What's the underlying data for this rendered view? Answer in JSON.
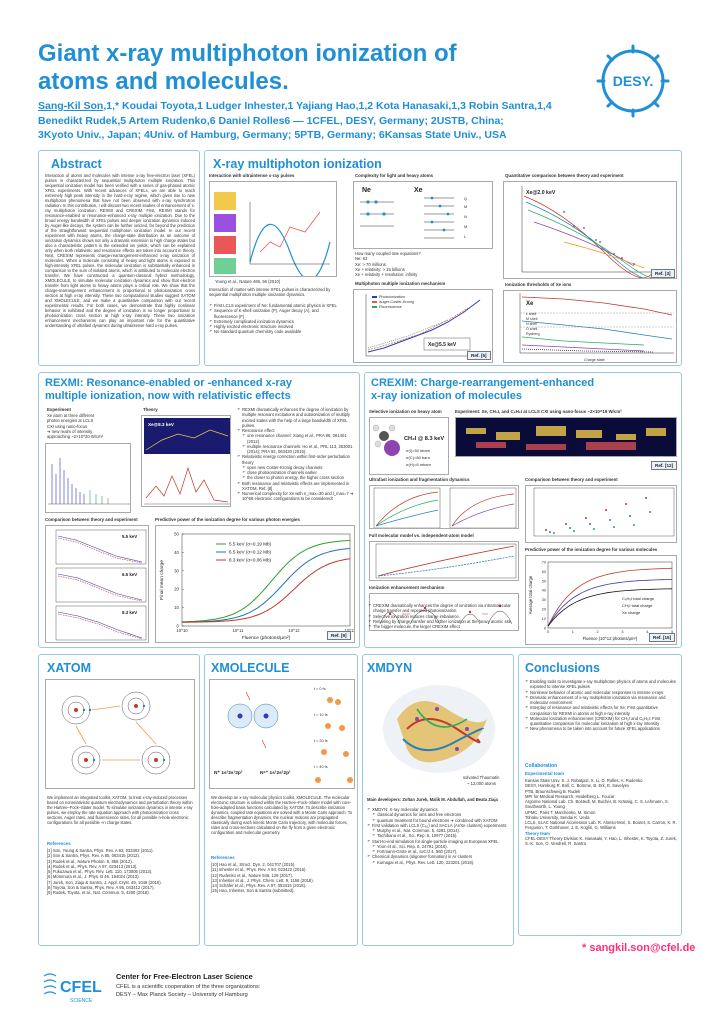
{
  "header": {
    "title_line1": "Giant x-ray multiphoton ionization of",
    "title_line2": "atoms and molecules.",
    "authors_line1_name": "Sang-Kil Son",
    "authors_line1_rest": ",1,* Koudai Toyota,1 Ludger Inhester,1 Yajiang Hao,1,2 Kota Hanasaki,1,3 Robin Santra,1,4",
    "authors_line2": "Benedikt Rudek,5 Artem Rudenko,6 Daniel Rolles6 — 1CFEL, DESY, Germany; 2USTB, China;",
    "authors_line3": "3Kyoto Univ., Japan; 4Univ. of Hamburg, Germany; 5PTB, Germany; 6Kansas State Univ., USA",
    "logo_text": "DESY."
  },
  "abstract": {
    "heading": "Abstract",
    "text": "Interaction of atoms and molecules with intense x-ray free-electron laser (XFEL) pulses is characterized by sequential multiphoton multiple ionization. This sequential ionization model has been verified with a series of gas-phased atomic XFEL experiments. With recent advances of XFELs, we are able to reach extremely high peak intensity in the hard-x-ray regime, which gives rise to new multiphoton phenomena that have not been observed with x-ray synchrotron radiation. In this contribution, I will discuss two recent studies of enhancement of x-ray multiphoton ionization: REXMI and CREXIM. First, REXMI stands for resonance-enabled or resonance-enhanced x-ray multiple ionization. Due to the broad energy bandwidth of XFEL pulses and deeper ionization dynamics induced by Auger-like decays, the system can be further ionized, far beyond the prediction of the straightforward sequential multiphoton ionization model. In our recent experiment with heavy atoms, the charge-state distribution as an outcome of ionization dynamics shows not only a dramatic extension to high charge states but also a characteristic pattern in the extended ion yields, which can be explained only when both relativistic and resonance effects are taken into account in theory. Next, CREXIM represents charge-rearrangement-enhanced x-ray ionization of molecules. When a molecule consisting of heavy and light atoms is exposed to high-intensity XFEL pulses, the molecular ionization is substantially enhanced in comparison to the sum of isolated atoms, which is attributed to molecular electron transfer. We have constructed a quantum-classical hybrid methodology, XMOLECULE, to simulate molecular ionization dynamics and show that electron transfer from light atoms to heavy atoms plays a critical role. We show that the charge-rearrangement enhancement is proportional to photoionization cross section at high x-ray intensity. These two computational studies suggest XATOM and XMOLECULE, and we make a quantitative comparison with our recent experimental results. For both cases, we demonstrate that highly nonlinear behavior is exhibited and the degree of ionization is no longer proportional to photoionization cross section at high x-ray intensity. These two ionization enhancement mechanisms can play an important role for the quantitative understanding of ultrafast dynamics during ultraintense hard x-ray pulses."
  },
  "xmi": {
    "heading": "X-ray multiphoton ionization",
    "fig1_title": "Interaction with ultraintense x-ray pulses",
    "fig1_ref": "Young et al., Nature 466, 56 (2010)",
    "bullets_intro": "Interaction of matter with intense XFEL pulses is characterized by sequential multiphoton multiple ionization dynamics.",
    "bullets": [
      "First LCLS experiment of Ne: fundamental atomic physics in XFEL",
      "Sequence of K-shell ionization (P), Auger decay (A), and fluorescence (F)",
      "Extremely complicated ionization dynamics",
      "Highly excited electronic structure involved",
      "No standard quantum chemistry code available"
    ],
    "fig2_title": "Complexity for light and heavy atoms",
    "ne_label": "Ne",
    "xe_label": "Xe",
    "ne_lines": [
      "How many coupled rate equations?",
      "Ne: 63",
      "Xe: > 70 millions",
      "Xe + relativity: > 15 billions",
      "Xe + relativity + resolution: infinity"
    ],
    "fig3_title": "Quantitative comparison between theory and experiment",
    "fig3_label": "Xe@2.0 keV",
    "fig3_ref": "Ref. [3]",
    "fig4_title": "Multiphoton multiple ionization mechanism",
    "fig4_label": "Xe@5.5 keV",
    "fig4_legend": [
      "Photoionization",
      "Auger-Coster-Kronig",
      "Fluorescence"
    ],
    "fig4_ref": "Ref. [5]",
    "fig5_title": "Ionization thresholds of Xe ions",
    "fig5_label": "Xe",
    "fig5_legend": [
      "L shell",
      "M shell",
      "N shell",
      "O shell",
      "Rydberg"
    ],
    "fig5_x": "Charge state",
    "fig5_y": "Orbital binding energy (keV)"
  },
  "rexmi": {
    "heading_line1": "REXMI: Resonance-enabled or -enhanced x-ray",
    "heading_line2": "multiple ionization, now with relativistic effects",
    "exp_title": "Experiment",
    "exp_lines": [
      "Xe atom at three different",
      "photon energies at LCLS",
      "CXI using nano-focus",
      "➔ new realm of intensity",
      "approaching ~2×10^20 W/cm²"
    ],
    "theory_title": "Theory",
    "theory_label": "Xe@8.3 keV",
    "bullets": [
      "REXMI dramatically enhances the degree of ionization by multiple resonant excitations and autoionization of multiply excited states with the help of a large bandwidth of XFEL pulses.",
      "Resonance effect",
      "one resonance channel: Xiang et al., PRA 86, 061401 (2012).",
      "multiple resonance channels: Ho et al., PRL 113, 253001 (2014); PRA 92, 063430 (2015).",
      "Relativistic energy correction within first-order perturbation theory",
      "open new Coster-Kronig decay channels",
      "close photoionization channels earlier",
      "the closer to photon energy, the higher cross section",
      "Both resonance and relativistic effects are implemented in XATOM. Ref. [8]",
      "Numerical complexity for Xe with n_max=30 and l_max=7 ➔ 10^68 electronic configurations to be considered!"
    ],
    "cmp_title": "Comparison between theory and experiment",
    "cmp_labels": [
      "5.5 keV",
      "6.5 keV",
      "8.3 keV"
    ],
    "pred_title": "Predictive power of the ionization degree for various photon energies",
    "pred_series": [
      "5.5 keV (σ=0.19 Mb)",
      "6.5 keV (σ=0.12 Mb)",
      "8.3 keV (σ=0.06 Mb)"
    ],
    "pred_xlabel": "Fluence (photons/μm²)",
    "pred_ylabel": "Final mean charge",
    "pred_ref": "Ref. [9]"
  },
  "crexim": {
    "heading_line1": "CREXIM: Charge-rearrangement-enhanced",
    "heading_line2": "x-ray ionization of molecules",
    "sel_title": "Selective ionization on heavy atom",
    "sel_label": "CH₃I @ 8.3 keV",
    "sel_cs": [
      "σ(I)=50 kbarn",
      "σ(C)=80 barn",
      "σ(H)=8 mbarn"
    ],
    "exp_title": "Experiment: Xe, CH₃I, and C₆H₅I at LCLS CXI using nano-focus ~2×10^19 W/cm²",
    "exp_ref": "Ref. [12]",
    "ultra_title": "Ultrafast ionization and fragmentation dynamics",
    "cmp_title": "Comparison between theory and experiment",
    "full_title": "Full molecular model vs. independent-atom model",
    "mech_title": "Ionization enhancement mechanism",
    "pred_title": "Predictive power of the ionization degree for various molecules",
    "pred_series": [
      "C₆H₅I total charge",
      "CH₃I total charge",
      "Xe charge"
    ],
    "pred_xlabel": "Fluence (10^12 photons/μm²)",
    "pred_ylabel": "Average total charge",
    "pred_ref": "Ref. [15]",
    "bullets": [
      "CREXIM dramatically enhances the degree of ionization via intramolecular charge transfer and repeated photoionization.",
      "Selective ionization induces charge imbalance.",
      "Refueling by charge transfer and further ionization at the heavy atomic site",
      "The bigger molecule, the larger CREXIM effect"
    ]
  },
  "xatom": {
    "heading": "XATOM",
    "text": "We implement an integrated toolkit, XATOM, to treat x-ray-induced processes based on nonrelativistic quantum electrodynamics and perturbation theory within the Hartree–Fock–Slater model. To simulate ionization dynamics in intense x-ray pulses, we employ the rate equation approach with photoionization cross sections, Auger rates, and fluorescence rates, for all possible n-hole electronic configurations for all possible +n charge states.",
    "refs_title": "References",
    "refs": [
      "[1] Son, Young & Santra, Phys. Rev. A 83, 033402 (2011).",
      "[2] Son & Santra, Phys. Rev. A 85, 063415 (2012).",
      "[3] Rudek et al., Nature Photon. 6, 858 (2012).",
      "[4] Rudek et al., Phys. Rev. A 87, 023413 (2013).",
      "[5] Fukuzawa et al., Phys. Rev. Lett. 110, 173005 (2013).",
      "[6] Motomura et al., J. Phys. B 46, 164024 (2013).",
      "[7] Jurek, Son, Ziaja & Santra, J. Appl. Cryst. 49, 1048 (2016).",
      "[8] Toyota, Son & Santra, Phys. Rev. A 95, 043412 (2017).",
      "[9] Rudek, Toyota, et al., Nat. Commun. 9, 4200 (2018)."
    ]
  },
  "xmolecule": {
    "heading": "XMOLECULE",
    "config1": "N⁺ 1s²2s¹2p³",
    "config2": "N⁶⁺ 1s¹2s¹2p¹",
    "times": [
      "t = 0 fs",
      "t = 10 fs",
      "t = 20 fs",
      "t = 40 fs"
    ],
    "text": "We develop an x-ray molecular physics toolkit, XMOLECULE. The molecular electronic structure is solved within the Hartree–Fock–Slater model with core-hole-adapted basis functions calculated by XATOM. To describe ionization dynamics, coupled rate equations are solved with a Monte Carlo approach. To describe fragmentation dynamics, the nuclear motions are propagated classically during each kinetic Monte Carlo trajectory, with molecular forces, rates and cross-sections calculated on the fly from a given electronic configuration and molecular geometry.",
    "refs_title": "References",
    "refs": [
      "[10] Hao et al., Struct. Dyn. 2, 041707 (2015).",
      "[11] Inhester et al., Phys. Rev. A 94, 023422 (2016).",
      "[12] Rudenko et al., Nature 546, 129 (2017).",
      "[13] Inhester et al., J. Phys. Chem. Lett. 9, 1156 (2018).",
      "[14] Schäfer et al., Phys. Rev. A 97, 053415 (2018).",
      "[15] Hao, Inhester, Son & Santra (submitted)."
    ]
  },
  "xmdyn": {
    "heading": "XMDYN",
    "caption_line1": "solvated Thaumatin",
    "caption_line2": "~ 12,000 atoms",
    "developers": "Main developers: Zoltan Jurek, Malik M. Abdullah, and Beata Ziaja",
    "bullets": [
      "XMDYN: X-ray molecular dynamics",
      "classical dynamics for ions and free electrons",
      "quantum treatment for bound electrons ➔ combined with XATOM",
      "First validation with LCLS (C₆₀) and SACLA (Ar/Xe clusters) experiments",
      "Murphy et al., Nat. Commun. 5, 4281 (2014).",
      "Tachibana et al., Sci. Rep. 5, 10977 (2015).",
      "Start-to-end simulation for single-particle imaging at European XFEL",
      "Yoon et al., Sci. Rep. 6, 24791 (2016).",
      "Fortmann-Grote et al., IUCrJ 4, 560 (2017).",
      "Chemical dynamics (oligomer formation) in Ar clusters",
      "Kumagai et al., Phys. Rev. Lett. 120, 223201 (2018)."
    ]
  },
  "conclusions": {
    "heading": "Conclusions",
    "bullets": [
      "Enabling tools to investigate x-ray multiphoton physics of atoms and molecules exposed to intense XFEL pulses",
      "Nonlinear behavior of atomic and molecular responses to intense x-rays",
      "Dramatic enhancement of x-ray multiphoton ionization via resonance and molecular environment",
      "Interplay of resonance and relativistic effects for Xe: First quantitative comparison for REXMI in atoms at high x-ray intensity",
      "Molecular ionization enhancement (CREXIM) for CH₃I and C₆H₅I: First quantitative comparison for molecular ionization at high x-ray intensity",
      "New phenomena to be taken into account for future XFEL applications"
    ],
    "collab_title": "Collaboration",
    "exp_team": "Experimental team",
    "collab": [
      "Kansas State Univ.  S. J. Robatjazi, X. Li, D. Rolles, A. Rudenko",
      "DESY, Hamburg  R. Boll, C. Bomme, B. Erk, E. Savelyev",
      "PTB, Braunschweig  B. Rudek",
      "MPI for Medical Research, Heidelberg  L. Foucar",
      "Argonne National Lab.  Ch. Bostedt, M. Bucher, B. Krässig, C. S. Lehmann, S. Southworth, L. Young",
      "UPMC, Paris  T. Marchenko, M. Simon",
      "Tohoku University, Sendai  K. Ueda",
      "LCLS, SLAC National Accelerator Lab.  R. Alonso-Mori, S. Boutet, S. Carron, K. R. Ferguson, T. Gorkhover, J. E. Koglin, G. Williams",
      "Theory team",
      "CFEL-DESY Theory Division  K. Hanasaki, Y. Hao, L. Inhester, K. Toyota, Z. Jurek, S.-K. Son, O. Vendrell, R. Santra"
    ]
  },
  "footer": {
    "email": "* sangkil.son@cfel.de",
    "cfel_logo": "CFEL",
    "cfel_sub": "SCIENCE",
    "center_title": "Center for Free-Electron Laser Science",
    "center_line1": "CFEL is a scientific cooperation of the three organizations:",
    "center_line2": "DESY – Max Planck Society – University of Hamburg"
  }
}
